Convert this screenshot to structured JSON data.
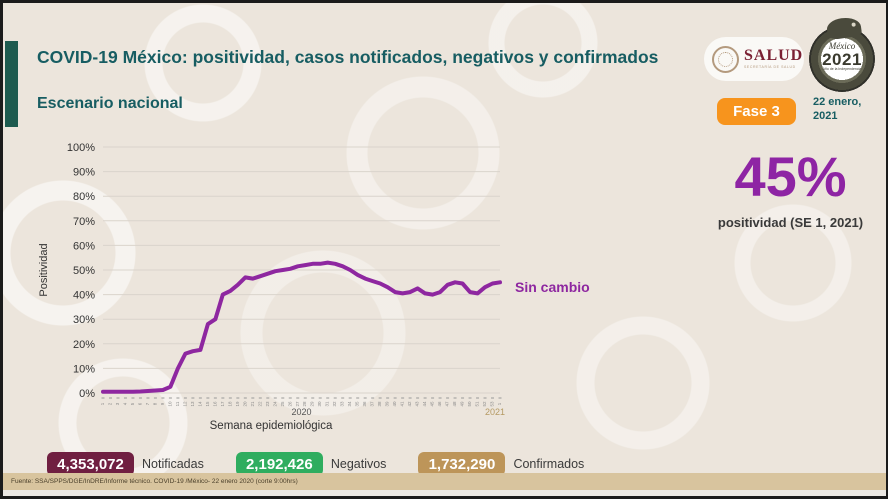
{
  "header": {
    "title": "COVID-19 México: positividad, casos notificados, negativos y confirmados",
    "subtitle": "Escenario nacional",
    "phase_badge": "Fase 3",
    "date": "22 enero, 2021",
    "salud_logo": {
      "name": "SALUD",
      "subtext": "SECRETARÍA DE SALUD"
    },
    "mexico2021_logo": {
      "script": "México",
      "year": "2021",
      "subtext": "Año de la Independencia"
    }
  },
  "highlight": {
    "value": "45%",
    "caption": "positividad (SE 1, 2021)"
  },
  "chart_data": {
    "type": "line",
    "title": "",
    "xlabel": "Semana epidemiológica",
    "ylabel": "Positividad",
    "ylim": [
      0,
      100
    ],
    "grid": true,
    "legend": "none",
    "line_color": "#8E27A0",
    "y_tick_labels": [
      "0%",
      "10%",
      "20%",
      "30%",
      "40%",
      "50%",
      "60%",
      "70%",
      "80%",
      "90%",
      "100%"
    ],
    "x_year_labels": [
      "2020",
      "2021"
    ],
    "annotation": "Sin cambio",
    "categories": [
      "1",
      "2",
      "3",
      "4",
      "5",
      "6",
      "7",
      "8",
      "9",
      "10",
      "11",
      "12",
      "13",
      "14",
      "15",
      "16",
      "17",
      "18",
      "19",
      "20",
      "21",
      "22",
      "23",
      "24",
      "25",
      "26",
      "27",
      "28",
      "29",
      "30",
      "31",
      "32",
      "33",
      "34",
      "35",
      "36",
      "37",
      "38",
      "39",
      "40",
      "41",
      "42",
      "43",
      "44",
      "45",
      "46",
      "47",
      "48",
      "49",
      "50",
      "51",
      "52",
      "53",
      "1"
    ],
    "values": [
      0.5,
      0.5,
      0.5,
      0.5,
      0.5,
      0.6,
      0.8,
      1,
      1.2,
      2.5,
      10,
      16,
      17,
      17.5,
      28,
      30,
      40,
      41.5,
      44,
      47,
      46.5,
      47.5,
      48.5,
      49.5,
      50,
      50.5,
      51.5,
      52,
      52.5,
      52.5,
      53,
      52.5,
      51.5,
      50,
      48,
      46.5,
      45.5,
      44.5,
      43,
      41,
      40.5,
      41,
      42.5,
      40.5,
      40,
      41,
      44,
      45,
      44.5,
      41,
      40.5,
      43,
      44.5,
      45
    ]
  },
  "stats": {
    "items": [
      {
        "value": "4,353,072",
        "label": "Notificadas",
        "color": "#701F41"
      },
      {
        "value": "2,192,426",
        "label": "Negativos",
        "color": "#2FAD5F"
      },
      {
        "value": "1,732,290",
        "label": "Confirmados",
        "color": "#BD9559"
      }
    ]
  },
  "footer": {
    "source": "Fuente: SSA/SPPS/DGE/InDRE/Informe técnico. COVID-19 /México- 22 enero 2020 (corte 9:00hrs)"
  },
  "colors": {
    "accent_green": "#1E5B4F",
    "title_teal": "#175D62",
    "purple": "#8E27A0",
    "orange_badge": "#F7941D",
    "background": "#ECE5DC",
    "footer_tan": "#D8C49E"
  }
}
